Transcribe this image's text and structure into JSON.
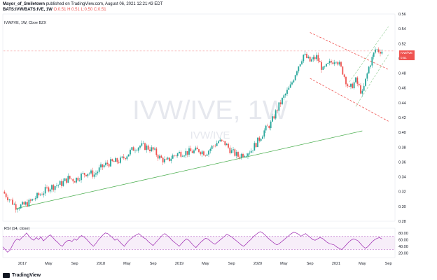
{
  "header": {
    "author": "Mayor_of_Smiletown",
    "published": "published on TradingView.com, August 06, 2021 12:21:43 EDT",
    "pair": "BATS:IVW/BATS:IVE, 1W",
    "ohlc_o": "O:0.51",
    "ohlc_h": "H:0.51",
    "ohlc_l": "L:0.50",
    "ohlc_c": "C:0.51"
  },
  "symbol_line": "IVW/IVE, 1W, Cboe BZX",
  "watermark": {
    "big": "IVW/IVE, 1W",
    "small": "IVW/IVE"
  },
  "price_tag": {
    "label": "IVW/IVE",
    "value": "0.51",
    "time": "01:38:17"
  },
  "rsi_label": "RSI (14, close)",
  "footer_brand": "TradingView",
  "colors": {
    "up": "#26a69a",
    "down": "#ef5350",
    "rsi": "#9c27b0",
    "trend": "#4caf50",
    "channel": "#ef5350"
  },
  "chart_data": {
    "type": "candlestick",
    "y_axis": {
      "min": 0.28,
      "max": 0.56,
      "ticks": [
        "0.56",
        "0.54",
        "0.52",
        "0.50",
        "0.48",
        "0.46",
        "0.44",
        "0.42",
        "0.40",
        "0.38",
        "0.36",
        "0.34",
        "0.32",
        "0.30",
        "0.28"
      ]
    },
    "x_ticks": [
      "2017",
      "May",
      "Sep",
      "2018",
      "May",
      "Sep",
      "2019",
      "May",
      "Sep",
      "2020",
      "May",
      "Sep",
      "2021",
      "May",
      "Sep"
    ],
    "x_range": [
      "2016-10",
      "2021-10"
    ],
    "close_points": [
      [
        "2016-10",
        0.32
      ],
      [
        "2016-11",
        0.31
      ],
      [
        "2016-12",
        0.3
      ],
      [
        "2017-01",
        0.301
      ],
      [
        "2017-02",
        0.305
      ],
      [
        "2017-03",
        0.312
      ],
      [
        "2017-04",
        0.318
      ],
      [
        "2017-05",
        0.325
      ],
      [
        "2017-06",
        0.328
      ],
      [
        "2017-07",
        0.331
      ],
      [
        "2017-08",
        0.338
      ],
      [
        "2017-09",
        0.336
      ],
      [
        "2017-10",
        0.342
      ],
      [
        "2017-11",
        0.346
      ],
      [
        "2017-12",
        0.343
      ],
      [
        "2018-01",
        0.352
      ],
      [
        "2018-02",
        0.358
      ],
      [
        "2018-03",
        0.36
      ],
      [
        "2018-04",
        0.362
      ],
      [
        "2018-05",
        0.37
      ],
      [
        "2018-06",
        0.378
      ],
      [
        "2018-07",
        0.382
      ],
      [
        "2018-08",
        0.38
      ],
      [
        "2018-09",
        0.376
      ],
      [
        "2018-10",
        0.366
      ],
      [
        "2018-11",
        0.36
      ],
      [
        "2018-12",
        0.368
      ],
      [
        "2019-01",
        0.372
      ],
      [
        "2019-02",
        0.373
      ],
      [
        "2019-03",
        0.374
      ],
      [
        "2019-04",
        0.376
      ],
      [
        "2019-05",
        0.372
      ],
      [
        "2019-06",
        0.38
      ],
      [
        "2019-07",
        0.388
      ],
      [
        "2019-08",
        0.385
      ],
      [
        "2019-09",
        0.374
      ],
      [
        "2019-10",
        0.368
      ],
      [
        "2019-11",
        0.372
      ],
      [
        "2019-12",
        0.376
      ],
      [
        "2020-01",
        0.388
      ],
      [
        "2020-02",
        0.402
      ],
      [
        "2020-03",
        0.412
      ],
      [
        "2020-04",
        0.432
      ],
      [
        "2020-05",
        0.448
      ],
      [
        "2020-06",
        0.462
      ],
      [
        "2020-07",
        0.486
      ],
      [
        "2020-08",
        0.505
      ],
      [
        "2020-09",
        0.496
      ],
      [
        "2020-10",
        0.502
      ],
      [
        "2020-11",
        0.484
      ],
      [
        "2020-12",
        0.493
      ],
      [
        "2021-01",
        0.5
      ],
      [
        "2021-02",
        0.482
      ],
      [
        "2021-03",
        0.458
      ],
      [
        "2021-04",
        0.47
      ],
      [
        "2021-05",
        0.452
      ],
      [
        "2021-06",
        0.488
      ],
      [
        "2021-07",
        0.512
      ],
      [
        "2021-08",
        0.51
      ]
    ],
    "current_price": 0.51,
    "trendline": {
      "from": [
        "2016-12",
        0.297
      ],
      "to": [
        "2021-05",
        0.402
      ]
    },
    "channel_upper": {
      "from": [
        "2020-09",
        0.535
      ],
      "to": [
        "2021-09",
        0.485
      ]
    },
    "channel_lower": {
      "from": [
        "2020-09",
        0.473
      ],
      "to": [
        "2021-09",
        0.415
      ]
    },
    "channel_dashed_up_a": {
      "from": [
        "2021-03",
        0.468
      ],
      "to": [
        "2021-09",
        0.543
      ]
    },
    "channel_dashed_up_b": {
      "from": [
        "2021-04",
        0.435
      ],
      "to": [
        "2021-09",
        0.505
      ]
    },
    "rsi": {
      "levels": [
        20,
        40,
        60,
        80
      ],
      "band": [
        30,
        70
      ],
      "values": [
        38,
        30,
        22,
        28,
        42,
        55,
        62,
        58,
        66,
        72,
        80,
        70,
        62,
        58,
        66,
        60,
        68,
        56,
        62,
        70,
        74,
        66,
        58,
        52,
        44,
        40,
        50,
        56,
        58,
        54,
        62,
        58,
        66,
        72,
        68,
        62,
        54,
        46,
        40,
        48,
        58,
        66,
        74,
        80,
        78,
        72,
        66,
        58,
        62,
        54,
        46,
        40,
        50,
        58,
        64,
        70,
        74,
        78,
        72,
        66,
        62,
        54,
        48,
        42,
        50,
        58,
        66,
        74,
        78,
        72,
        66,
        58,
        52,
        46,
        40,
        48,
        56,
        62,
        58,
        50,
        42,
        36,
        44,
        52,
        58,
        64,
        62,
        56,
        50,
        46,
        52,
        58,
        64,
        70,
        76,
        72,
        68,
        62,
        56,
        50,
        44,
        40,
        46,
        54,
        60,
        68,
        74,
        80,
        84,
        80,
        74,
        66,
        60,
        54,
        48,
        44,
        48,
        54,
        60,
        66,
        72,
        78,
        82,
        80,
        76,
        70,
        74,
        78,
        72,
        66,
        60,
        58,
        62,
        66,
        64,
        58,
        52,
        48,
        46,
        44,
        38,
        34,
        30,
        36,
        44,
        52,
        58,
        62,
        60,
        56,
        48,
        40,
        34,
        38,
        46,
        54,
        60,
        64,
        66,
        62
      ]
    }
  }
}
